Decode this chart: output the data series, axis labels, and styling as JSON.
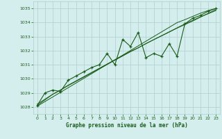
{
  "title": "Graphe pression niveau de la mer (hPa)",
  "bg_color": "#d4eeee",
  "grid_color": "#b0cccc",
  "line_color": "#1a5c1a",
  "xlim": [
    -0.5,
    23.5
  ],
  "ylim": [
    1027.5,
    1035.5
  ],
  "yticks": [
    1028,
    1029,
    1030,
    1031,
    1032,
    1033,
    1034,
    1035
  ],
  "xticks": [
    0,
    1,
    2,
    3,
    4,
    5,
    6,
    7,
    8,
    9,
    10,
    11,
    12,
    13,
    14,
    15,
    16,
    17,
    18,
    19,
    20,
    21,
    22,
    23
  ],
  "main_line": [
    1028.1,
    1029.0,
    1029.2,
    1029.1,
    1029.9,
    1030.2,
    1030.5,
    1030.8,
    1031.0,
    1031.8,
    1031.0,
    1032.8,
    1032.3,
    1033.3,
    1031.5,
    1031.8,
    1031.6,
    1032.5,
    1031.6,
    1033.9,
    1034.3,
    1034.5,
    1034.8,
    1035.0
  ],
  "smooth_line": [
    1028.1,
    1028.5,
    1028.9,
    1029.2,
    1029.55,
    1029.85,
    1030.15,
    1030.45,
    1030.75,
    1031.05,
    1031.35,
    1031.65,
    1031.95,
    1032.2,
    1032.5,
    1032.78,
    1033.05,
    1033.32,
    1033.6,
    1033.85,
    1034.1,
    1034.38,
    1034.65,
    1034.92
  ],
  "trend_line1": [
    1028.05,
    1028.38,
    1028.71,
    1029.04,
    1029.37,
    1029.7,
    1030.03,
    1030.36,
    1030.69,
    1031.02,
    1031.35,
    1031.68,
    1032.01,
    1032.34,
    1032.67,
    1033.0,
    1033.33,
    1033.66,
    1033.99,
    1034.2,
    1034.43,
    1034.66,
    1034.85,
    1035.0
  ],
  "trend_line2": [
    1028.2,
    1028.55,
    1028.9,
    1029.2,
    1029.52,
    1029.82,
    1030.12,
    1030.42,
    1030.72,
    1031.02,
    1031.32,
    1031.62,
    1031.92,
    1032.2,
    1032.5,
    1032.78,
    1033.06,
    1033.34,
    1033.62,
    1033.9,
    1034.15,
    1034.4,
    1034.62,
    1034.85
  ]
}
